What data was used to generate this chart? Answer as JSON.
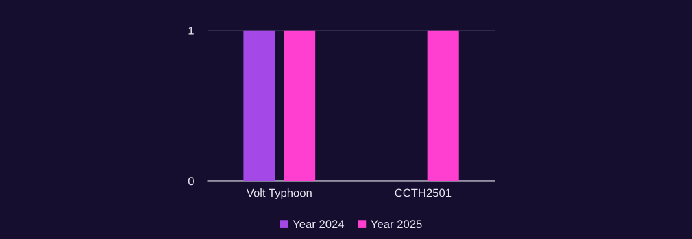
{
  "chart_data": {
    "type": "bar",
    "categories": [
      "Volt Typhoon",
      "CCTH2501"
    ],
    "series": [
      {
        "name": "Year 2024",
        "color": "#a449e8",
        "values": [
          1,
          0
        ]
      },
      {
        "name": "Year 2025",
        "color": "#ff3fcf",
        "values": [
          1,
          1
        ]
      }
    ],
    "ylim": [
      0,
      1
    ],
    "yticks": [
      0,
      1
    ],
    "grid": "y",
    "legend": "bottom"
  }
}
